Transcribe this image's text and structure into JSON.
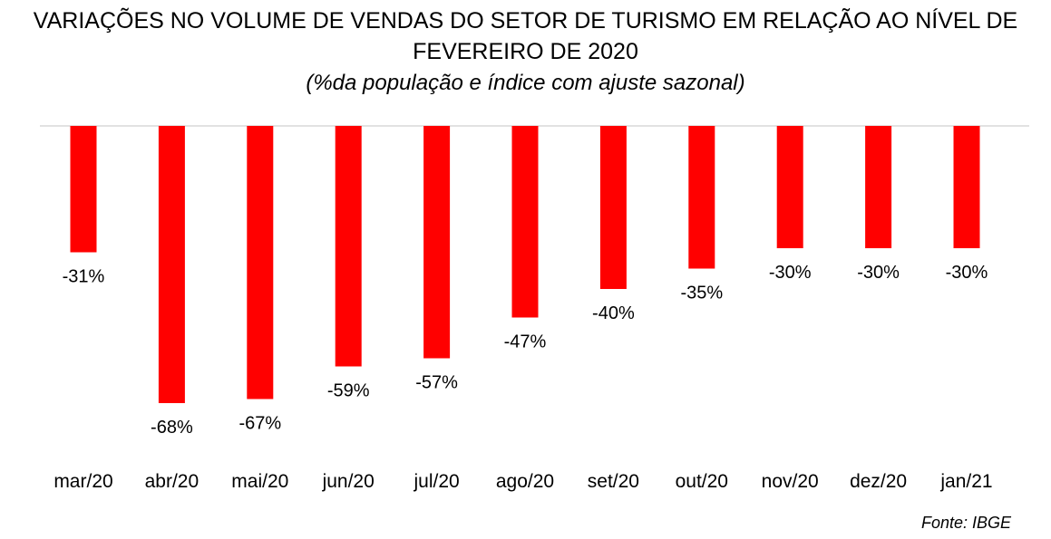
{
  "chart_data": {
    "type": "bar",
    "title": "VARIAÇÕES NO VOLUME DE VENDAS DO SETOR DE TURISMO EM RELAÇÃO AO NÍVEL DE FEVEREIRO DE 2020",
    "subtitle": "(%da população e índice com ajuste sazonal)",
    "categories": [
      "mar/20",
      "abr/20",
      "mai/20",
      "jun/20",
      "jul/20",
      "ago/20",
      "set/20",
      "out/20",
      "nov/20",
      "dez/20",
      "jan/21"
    ],
    "values": [
      -31,
      -68,
      -67,
      -59,
      -57,
      -47,
      -40,
      -35,
      -30,
      -30,
      -30
    ],
    "value_labels": [
      "-31%",
      "-68%",
      "-67%",
      "-59%",
      "-57%",
      "-47%",
      "-40%",
      "-35%",
      "-30%",
      "-30%",
      "-30%"
    ],
    "ylim": [
      -70,
      0
    ],
    "bar_color": "#ff0000",
    "zero_line_color": "#d9d9d9",
    "grid": false,
    "legend": "none"
  },
  "source": "Fonte: IBGE"
}
